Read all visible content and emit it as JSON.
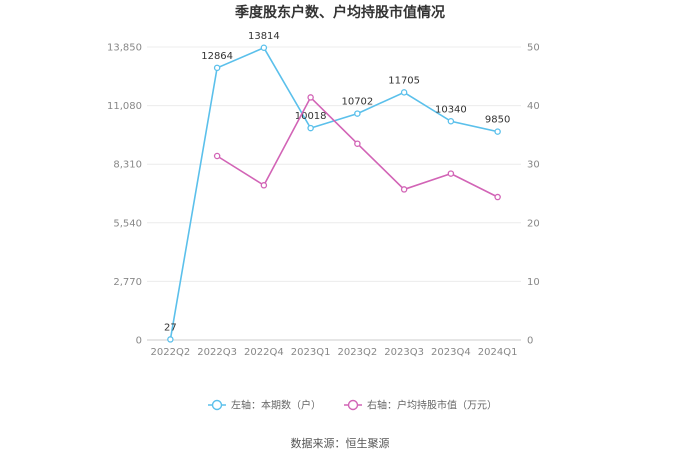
{
  "chart_data": {
    "type": "line",
    "title": "季度股东户数、户均持股市值情况",
    "categories": [
      "2022Q2",
      "2022Q3",
      "2022Q4",
      "2023Q1",
      "2023Q2",
      "2023Q3",
      "2023Q4",
      "2024Q1"
    ],
    "left_axis": {
      "ticks": [
        "0",
        "2,770",
        "5,540",
        "8,310",
        "11,080",
        "13,850"
      ],
      "ylim": [
        0,
        13850
      ]
    },
    "right_axis": {
      "ticks": [
        "0",
        "10",
        "20",
        "30",
        "40",
        "50"
      ],
      "ylim": [
        0,
        50
      ]
    },
    "grid": true,
    "legend_position": "bottom-center",
    "series": [
      {
        "name": "左轴：本期数（户）",
        "axis": "left",
        "color": "#5bc0eb",
        "values": [
          27,
          12864,
          13814,
          10018,
          10702,
          11705,
          10340,
          9850
        ],
        "labels": [
          "27",
          "12864",
          "13814",
          "10018",
          "10702",
          "11705",
          "10340",
          "9850"
        ]
      },
      {
        "name": "右轴：户均持股市值（万元）",
        "axis": "right",
        "color": "#d264b6",
        "values": [
          null,
          31.4,
          26.4,
          41.4,
          33.5,
          25.7,
          28.4,
          24.4
        ]
      }
    ],
    "source": "数据来源：恒生聚源"
  }
}
